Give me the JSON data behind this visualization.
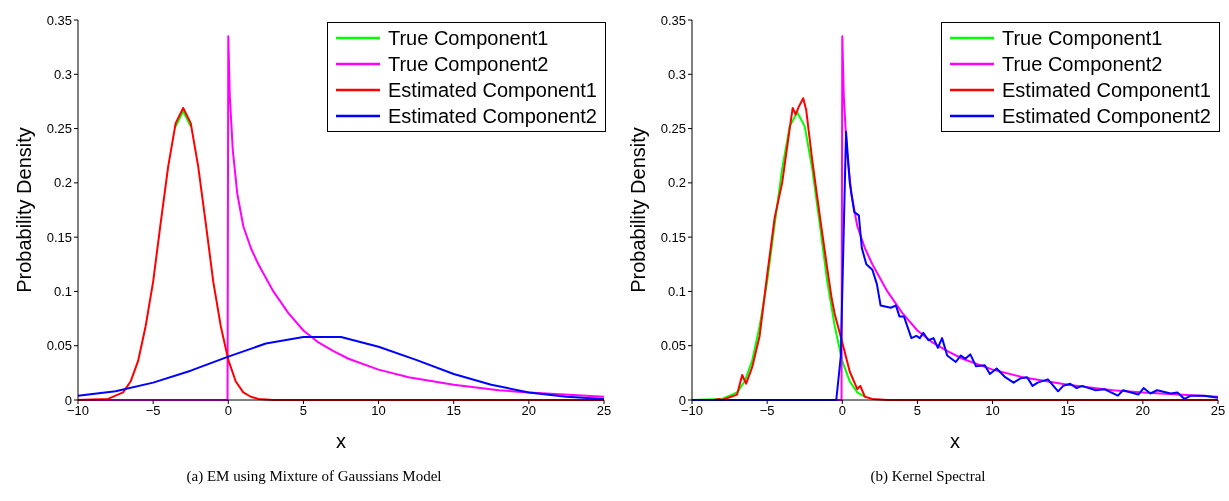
{
  "chart_data": [
    {
      "type": "line",
      "ylabel": "Probability Density",
      "xlabel": "x",
      "xlim": [
        -10,
        25
      ],
      "ylim": [
        0,
        0.35
      ],
      "xticks": [
        -10,
        -5,
        0,
        5,
        10,
        15,
        20,
        25
      ],
      "yticks": [
        0,
        0.05,
        0.1,
        0.15,
        0.2,
        0.25,
        0.3,
        0.35
      ],
      "legend": "top right",
      "grid": false,
      "annotations": [
        "(a) EM using Mixture of Gaussians Model"
      ],
      "series": [
        {
          "name": "True Component1",
          "color": "#00ff00",
          "x": [
            -3.5,
            -3,
            -2.5
          ],
          "values": [
            0.252,
            0.266,
            0.252
          ]
        },
        {
          "name": "True Component2",
          "color": "#ff00ff",
          "x": [
            -10,
            -0.05,
            0,
            0.1,
            0.3,
            0.6,
            1,
            1.5,
            2,
            3,
            4,
            5,
            6,
            7,
            8,
            10,
            12,
            15,
            18,
            20,
            25
          ],
          "values": [
            0,
            0,
            0.335,
            0.28,
            0.23,
            0.19,
            0.16,
            0.14,
            0.125,
            0.1,
            0.08,
            0.064,
            0.053,
            0.045,
            0.038,
            0.028,
            0.021,
            0.014,
            0.009,
            0.007,
            0.003
          ]
        },
        {
          "name": "Estimated Component1",
          "color": "#ff0000",
          "x": [
            -10,
            -8,
            -7,
            -6.5,
            -6,
            -5.5,
            -5,
            -4.5,
            -4,
            -3.5,
            -3,
            -2.5,
            -2,
            -1.5,
            -1,
            -0.5,
            0,
            0.5,
            1,
            1.5,
            2,
            3,
            25
          ],
          "values": [
            0,
            0.001,
            0.007,
            0.017,
            0.036,
            0.068,
            0.109,
            0.163,
            0.215,
            0.255,
            0.269,
            0.255,
            0.215,
            0.163,
            0.109,
            0.068,
            0.037,
            0.017,
            0.007,
            0.003,
            0.001,
            0,
            0
          ]
        },
        {
          "name": "Estimated Component2",
          "color": "#0000ff",
          "x": [
            -10,
            -7.5,
            -5,
            -2.5,
            0,
            2.5,
            5,
            7.5,
            10,
            12.5,
            15,
            17.5,
            20,
            22.5,
            25
          ],
          "values": [
            0.004,
            0.008,
            0.016,
            0.027,
            0.04,
            0.052,
            0.058,
            0.058,
            0.049,
            0.037,
            0.024,
            0.014,
            0.007,
            0.003,
            0.001
          ]
        }
      ]
    },
    {
      "type": "line",
      "ylabel": "Probability Density",
      "xlabel": "x",
      "xlim": [
        -10,
        25
      ],
      "ylim": [
        0,
        0.35
      ],
      "xticks": [
        -10,
        -5,
        0,
        5,
        10,
        15,
        20,
        25
      ],
      "yticks": [
        0,
        0.05,
        0.1,
        0.15,
        0.2,
        0.25,
        0.3,
        0.35
      ],
      "legend": "top right",
      "grid": false,
      "annotations": [
        "(b) Kernel Spectral"
      ],
      "series": [
        {
          "name": "True Component1",
          "color": "#00ff00",
          "x": [
            -10,
            -8,
            -7,
            -6.5,
            -6,
            -5.5,
            -5,
            -4.5,
            -4,
            -3.5,
            -3,
            -2.5,
            -2,
            -1.5,
            -1,
            -0.5,
            0,
            0.5,
            1,
            1.5
          ],
          "values": [
            0,
            0.001,
            0.007,
            0.017,
            0.036,
            0.068,
            0.109,
            0.162,
            0.213,
            0.252,
            0.265,
            0.252,
            0.213,
            0.162,
            0.109,
            0.068,
            0.036,
            0.017,
            0.007,
            0.003
          ]
        },
        {
          "name": "True Component2",
          "color": "#ff00ff",
          "x": [
            -10,
            -0.05,
            0,
            0.1,
            0.3,
            0.6,
            1,
            1.5,
            2,
            3,
            4,
            5,
            6,
            7,
            8,
            10,
            12,
            15,
            18,
            20,
            25
          ],
          "values": [
            0,
            0,
            0.335,
            0.28,
            0.23,
            0.19,
            0.16,
            0.14,
            0.125,
            0.1,
            0.08,
            0.064,
            0.053,
            0.045,
            0.038,
            0.028,
            0.021,
            0.014,
            0.009,
            0.007,
            0.003
          ]
        },
        {
          "name": "Estimated Component1",
          "color": "#ff0000",
          "x": [
            -10,
            -8.5,
            -8.2,
            -8,
            -7,
            -6.66,
            -6.4,
            -6,
            -5.5,
            -5,
            -4.5,
            -4,
            -3.5,
            -3.3,
            -3.1,
            -2.9,
            -2.6,
            -2.4,
            -2,
            -1.5,
            -1,
            -0.7,
            -0.5,
            0,
            0.5,
            1,
            1.2,
            1.5,
            2,
            3,
            25
          ],
          "values": [
            0,
            0,
            0.001,
            0,
            0.005,
            0.023,
            0.015,
            0.03,
            0.059,
            0.115,
            0.168,
            0.2,
            0.25,
            0.269,
            0.263,
            0.27,
            0.278,
            0.267,
            0.221,
            0.17,
            0.121,
            0.093,
            0.079,
            0.053,
            0.026,
            0.01,
            0.013,
            0.003,
            0.001,
            0,
            0
          ]
        },
        {
          "name": "Estimated Component2",
          "color": "#0000ff",
          "x": [
            -10,
            -0.4,
            -0.1,
            0.25,
            0.5,
            0.8,
            1.1,
            1.3,
            1.6,
            2,
            2.3,
            2.55,
            3.23,
            3.57,
            3.8,
            4.1,
            4.6,
            4.93,
            5.16,
            5.39,
            5.73,
            6.07,
            6.36,
            6.64,
            6.98,
            7.55,
            7.89,
            8.18,
            8.52,
            8.9,
            9.48,
            9.82,
            10.27,
            10.84,
            11.4,
            11.86,
            12.3,
            12.66,
            13,
            13.68,
            14.36,
            14.7,
            15.16,
            15.6,
            15.95,
            16.86,
            17.43,
            18.34,
            18.68,
            19.7,
            20.05,
            20.5,
            20.95,
            21.86,
            22.3,
            22.77,
            23.2,
            24.1,
            25
          ],
          "values": [
            0,
            0,
            0.04,
            0.247,
            0.2,
            0.173,
            0.17,
            0.14,
            0.125,
            0.12,
            0.107,
            0.087,
            0.085,
            0.087,
            0.077,
            0.077,
            0.057,
            0.059,
            0.057,
            0.062,
            0.055,
            0.057,
            0.048,
            0.057,
            0.041,
            0.035,
            0.041,
            0.038,
            0.042,
            0.031,
            0.032,
            0.024,
            0.029,
            0.021,
            0.016,
            0.02,
            0.021,
            0.013,
            0.016,
            0.019,
            0.008,
            0.013,
            0.015,
            0.011,
            0.013,
            0.009,
            0.01,
            0.004,
            0.009,
            0.005,
            0.011,
            0.006,
            0.009,
            0.006,
            0.007,
            0.001,
            0.004,
            0.004,
            0.002
          ]
        }
      ]
    }
  ]
}
